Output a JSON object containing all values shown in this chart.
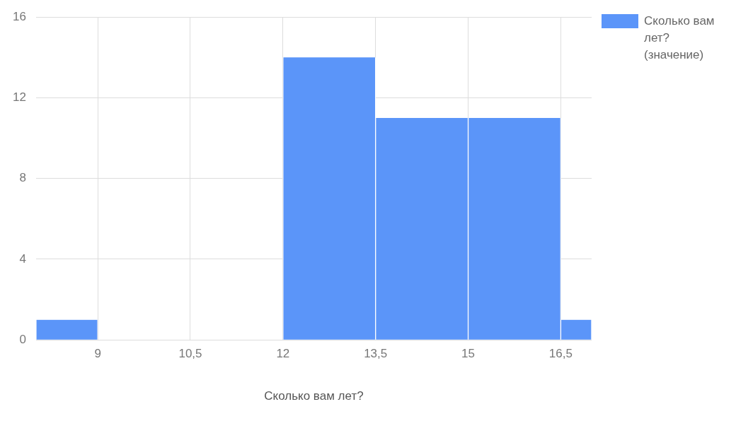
{
  "chart_data": {
    "type": "histogram",
    "xlabel": "Сколько вам лет?",
    "bins": [
      8,
      9,
      10.5,
      12,
      13.5,
      15,
      16.5,
      17
    ],
    "series": [
      {
        "name": "Сколько вам лет? (значение)",
        "color": "#5b95f9",
        "values": [
          1,
          0,
          0,
          14,
          11,
          11,
          1
        ]
      }
    ],
    "xlim": [
      8,
      17
    ],
    "xticks": [
      9,
      {
        "value": 10.5,
        "label": "10,5"
      },
      12,
      {
        "value": 13.5,
        "label": "13,5"
      },
      15,
      {
        "value": 16.5,
        "label": "16,5"
      }
    ],
    "ylim": [
      0,
      16
    ],
    "yticks": [
      0,
      4,
      8,
      12,
      16
    ],
    "grid": true,
    "legend": "top right"
  }
}
